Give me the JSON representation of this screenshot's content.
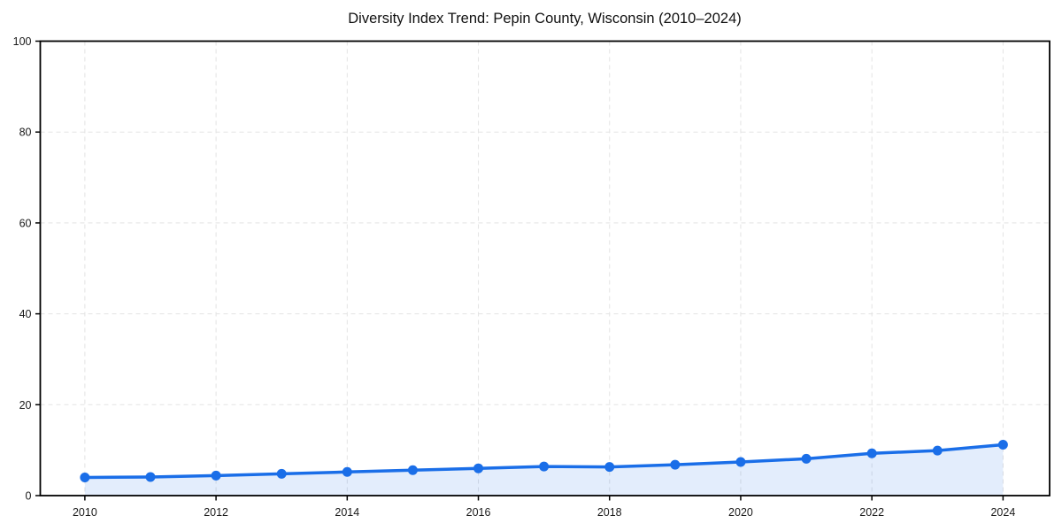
{
  "chart_data": {
    "type": "line",
    "title": "Diversity Index Trend: Pepin County, Wisconsin (2010–2024)",
    "x": [
      2010,
      2011,
      2012,
      2013,
      2014,
      2015,
      2016,
      2017,
      2018,
      2019,
      2020,
      2021,
      2022,
      2023,
      2024
    ],
    "series": [
      {
        "name": "Diversity Index",
        "values": [
          4.0,
          4.1,
          4.4,
          4.8,
          5.2,
          5.6,
          6.0,
          6.4,
          6.3,
          6.8,
          7.4,
          8.1,
          9.3,
          9.9,
          11.2
        ]
      }
    ],
    "xlabel": "",
    "ylabel": "",
    "xlim": [
      2009.32,
      2024.71
    ],
    "ylim": [
      0,
      100
    ],
    "xticks": [
      2010,
      2012,
      2014,
      2016,
      2018,
      2020,
      2022,
      2024
    ],
    "yticks": [
      0,
      20,
      40,
      60,
      80,
      100
    ],
    "grid": true,
    "grid_style": "dashed",
    "legend": "none",
    "marker": "circle",
    "area_fill": true,
    "colors": {
      "line": "#1a6ee8",
      "marker": "#1a6ee8",
      "area": "rgba(26,110,232,0.12)",
      "grid": "#e3e3e3",
      "spine": "#000000",
      "tick": "#000000",
      "tick_label": "#1a1a1a",
      "title": "#111111",
      "background": "#ffffff"
    }
  }
}
